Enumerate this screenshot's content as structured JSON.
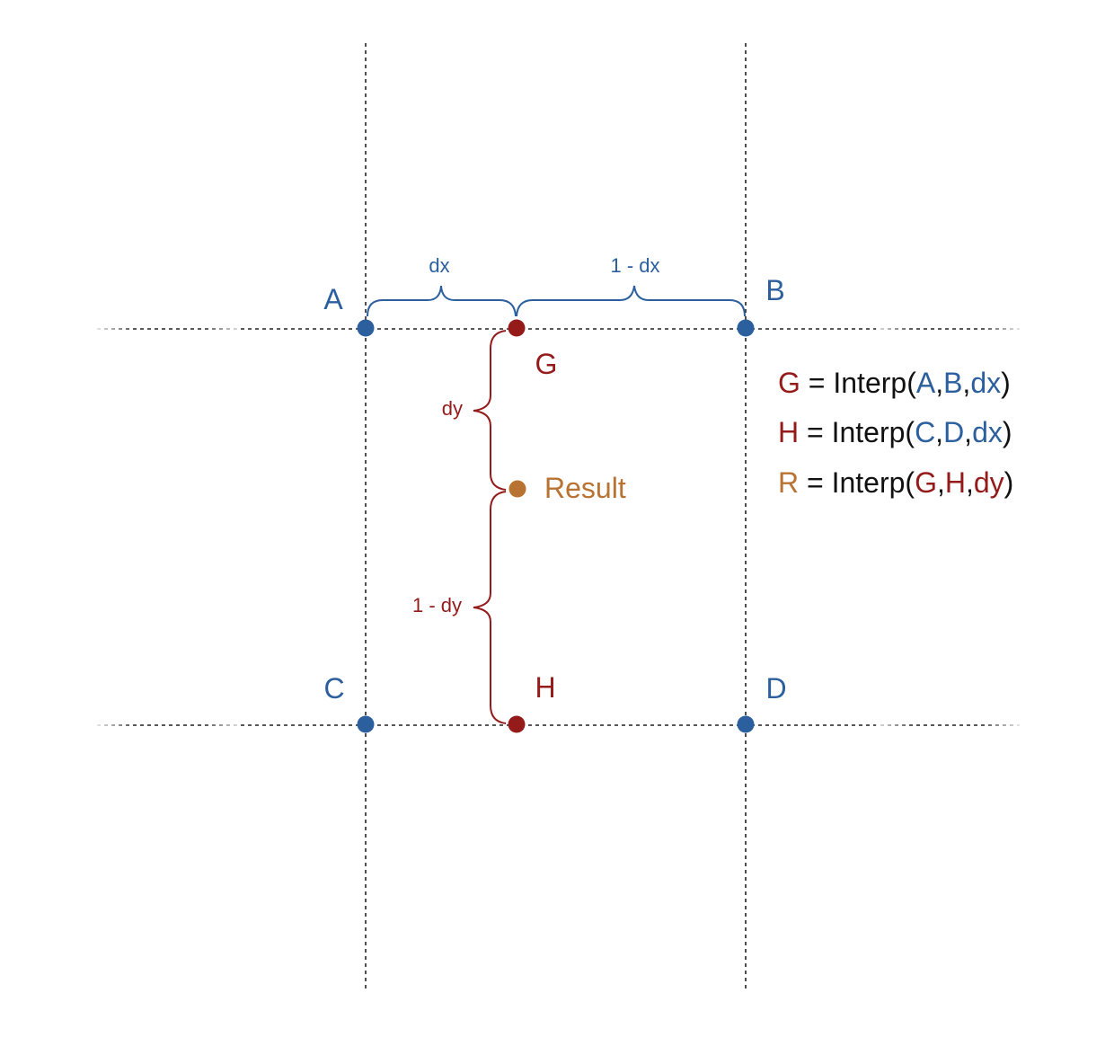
{
  "colors": {
    "blue": "#2c5f9e",
    "red": "#951b1b",
    "orange": "#b87333",
    "black": "#111111"
  },
  "points": {
    "A": "A",
    "B": "B",
    "C": "C",
    "D": "D",
    "G": "G",
    "H": "H",
    "result": "Result"
  },
  "braces": {
    "dx": "dx",
    "one_minus_dx": "1 - dx",
    "dy": "dy",
    "one_minus_dy": "1 - dy"
  },
  "equations": {
    "g": {
      "lhs": "G",
      "eq": " = Interp(",
      "a1": "A",
      "c1": ",",
      "a2": "B",
      "c2": ",",
      "a3": "dx",
      "close": ")"
    },
    "h": {
      "lhs": "H",
      "eq": " = Interp(",
      "a1": "C",
      "c1": ",",
      "a2": "D",
      "c2": ",",
      "a3": "dx",
      "close": ")"
    },
    "r": {
      "lhs": "R",
      "eq": " = Interp(",
      "a1": "G",
      "c1": ",",
      "a2": "H",
      "c2": ",",
      "a3": "dy",
      "close": ")"
    }
  }
}
